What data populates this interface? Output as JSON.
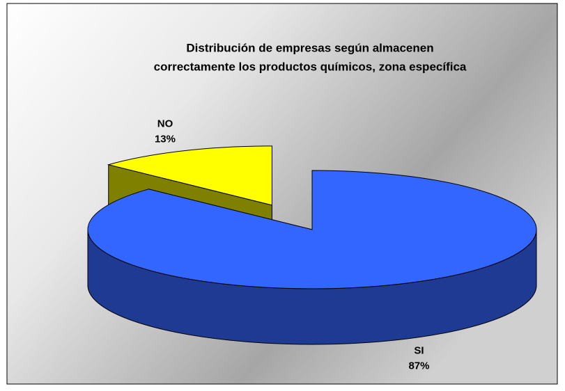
{
  "chart_data": {
    "type": "pie3d",
    "title": [
      "Distribución de empresas según almacenen",
      "correctamente los productos químicos, zona específica"
    ],
    "categories": [
      "SI",
      "NO"
    ],
    "values": [
      87,
      13
    ],
    "value_labels": [
      "87%",
      "13%"
    ],
    "colors": [
      "#3366ff",
      "#ffff00"
    ],
    "side_colors": [
      "#1f3a93",
      "#808000"
    ],
    "exploded": [
      false,
      true
    ]
  }
}
